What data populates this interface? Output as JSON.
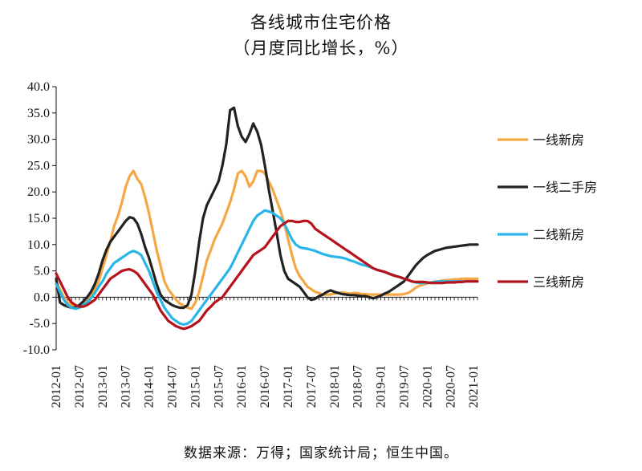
{
  "chart_data": {
    "type": "line",
    "title": "各线城市住宅价格",
    "subtitle": "（月度同比增长，%）",
    "source": "数据来源：万得；国家统计局；恒生中国。",
    "ylim": [
      -10,
      40
    ],
    "yticks": [
      "40.0",
      "35.0",
      "30.0",
      "25.0",
      "20.0",
      "15.0",
      "10.0",
      "5.0",
      "0.0",
      "-5.0",
      "-10.0"
    ],
    "ytick_values": [
      40,
      35,
      30,
      25,
      20,
      15,
      10,
      5,
      0,
      -5,
      -10
    ],
    "xticks": [
      "2012-01",
      "2012-07",
      "2013-01",
      "2013-07",
      "2014-01",
      "2014-07",
      "2015-01",
      "2015-07",
      "2016-01",
      "2016-07",
      "2017-01",
      "2017-07",
      "2018-01",
      "2018-07",
      "2019-01",
      "2019-07",
      "2020-01",
      "2020-07",
      "2021-01"
    ],
    "x_start": "2012-01",
    "x_end": "2021-02",
    "legend_position": "right",
    "series": [
      {
        "name": "一线新房",
        "color": "#F4A742",
        "values": [
          3.0,
          1.5,
          0.0,
          -1.0,
          -1.5,
          -1.8,
          -1.8,
          -1.2,
          -0.5,
          0.5,
          1.5,
          3.0,
          5.5,
          8.0,
          10.5,
          13.5,
          15.5,
          18.0,
          21.0,
          23.0,
          24.0,
          22.5,
          21.5,
          19.0,
          16.0,
          12.5,
          9.0,
          6.0,
          3.0,
          1.5,
          0.5,
          -0.5,
          -1.2,
          -1.6,
          -2.0,
          -2.2,
          -1.0,
          1.0,
          4.0,
          7.0,
          9.0,
          11.0,
          12.5,
          14.0,
          16.0,
          18.0,
          20.5,
          23.5,
          24.0,
          23.0,
          21.0,
          22.0,
          24.0,
          24.0,
          23.5,
          22.0,
          20.5,
          18.5,
          16.5,
          14.0,
          11.0,
          8.0,
          5.5,
          4.0,
          3.0,
          2.0,
          1.5,
          1.0,
          0.8,
          0.5,
          0.5,
          0.5,
          0.7,
          0.8,
          0.9,
          0.8,
          0.7,
          0.8,
          0.8,
          0.6,
          0.6,
          0.5,
          0.5,
          0.5,
          0.5,
          0.5,
          0.5,
          0.5,
          0.5,
          0.5,
          0.6,
          0.8,
          1.2,
          1.8,
          2.2,
          2.4,
          2.6,
          2.8,
          3.0,
          3.0,
          3.2,
          3.2,
          3.3,
          3.4,
          3.4,
          3.5,
          3.5,
          3.5,
          3.5,
          3.5
        ]
      },
      {
        "name": "一线二手房",
        "color": "#222222",
        "values": [
          3.5,
          -1.0,
          -1.5,
          -1.8,
          -2.0,
          -2.0,
          -1.5,
          -0.8,
          0.0,
          1.0,
          2.5,
          4.5,
          7.0,
          9.0,
          10.5,
          11.5,
          12.5,
          13.5,
          14.5,
          15.2,
          15.0,
          14.0,
          12.0,
          9.5,
          7.5,
          5.0,
          2.5,
          0.5,
          -0.5,
          -1.0,
          -1.5,
          -1.8,
          -2.0,
          -2.0,
          -1.5,
          0.5,
          5.0,
          10.5,
          15.0,
          17.5,
          19.0,
          20.5,
          22.0,
          25.0,
          29.0,
          35.5,
          36.0,
          32.5,
          30.5,
          29.5,
          31.0,
          33.0,
          31.5,
          29.0,
          25.0,
          20.5,
          16.5,
          12.5,
          8.0,
          5.0,
          3.5,
          3.0,
          2.5,
          2.0,
          1.0,
          0.0,
          -0.5,
          -0.3,
          0.2,
          0.5,
          1.0,
          1.3,
          1.0,
          0.8,
          0.6,
          0.5,
          0.4,
          0.4,
          0.3,
          0.2,
          0.2,
          0.0,
          -0.2,
          0.0,
          0.3,
          0.7,
          1.0,
          1.5,
          2.0,
          2.5,
          3.0,
          4.0,
          5.0,
          6.0,
          6.8,
          7.5,
          8.0,
          8.4,
          8.8,
          9.0,
          9.2,
          9.4,
          9.5,
          9.6,
          9.7,
          9.8,
          9.9,
          10.0,
          10.0,
          10.0
        ]
      },
      {
        "name": "二线新房",
        "color": "#29B5E8",
        "values": [
          2.5,
          1.0,
          -0.5,
          -1.5,
          -2.0,
          -2.2,
          -2.0,
          -1.5,
          -1.0,
          -0.2,
          0.8,
          2.0,
          3.0,
          4.5,
          5.5,
          6.5,
          7.0,
          7.5,
          8.0,
          8.5,
          8.8,
          8.5,
          8.0,
          6.5,
          5.0,
          3.0,
          1.0,
          -0.5,
          -2.0,
          -3.0,
          -4.0,
          -4.5,
          -5.0,
          -5.2,
          -5.0,
          -4.5,
          -3.5,
          -2.5,
          -1.5,
          -0.5,
          0.5,
          1.5,
          2.5,
          3.5,
          4.5,
          5.5,
          7.0,
          8.5,
          10.0,
          11.5,
          13.0,
          14.5,
          15.5,
          16.0,
          16.5,
          16.3,
          16.0,
          15.5,
          15.0,
          14.0,
          12.5,
          11.0,
          10.0,
          9.5,
          9.3,
          9.2,
          9.0,
          8.8,
          8.5,
          8.2,
          8.0,
          7.8,
          7.7,
          7.6,
          7.5,
          7.3,
          7.0,
          6.8,
          6.5,
          6.2,
          6.0,
          5.8,
          5.5,
          5.2,
          5.0,
          4.8,
          4.5,
          4.3,
          4.0,
          3.8,
          3.5,
          3.3,
          3.0,
          2.8,
          2.7,
          2.7,
          2.7,
          2.8,
          2.9,
          3.0,
          3.0,
          3.0,
          3.0,
          3.0,
          3.0,
          3.0,
          3.0,
          3.0,
          3.0,
          3.0
        ]
      },
      {
        "name": "三线新房",
        "color": "#B5121B",
        "values": [
          4.5,
          3.0,
          1.5,
          0.0,
          -1.0,
          -1.5,
          -1.8,
          -1.8,
          -1.5,
          -1.0,
          -0.5,
          0.5,
          1.5,
          2.5,
          3.5,
          4.0,
          4.5,
          5.0,
          5.2,
          5.3,
          5.0,
          4.5,
          3.5,
          2.5,
          1.5,
          0.5,
          -1.0,
          -2.5,
          -3.5,
          -4.5,
          -5.0,
          -5.5,
          -5.8,
          -6.0,
          -5.8,
          -5.5,
          -5.0,
          -4.5,
          -3.5,
          -2.5,
          -1.8,
          -1.0,
          -0.5,
          0.0,
          1.0,
          2.0,
          3.0,
          4.0,
          5.0,
          6.0,
          7.0,
          8.0,
          8.5,
          9.0,
          9.5,
          10.5,
          11.5,
          12.5,
          13.5,
          14.0,
          14.5,
          14.5,
          14.3,
          14.3,
          14.5,
          14.5,
          14.0,
          13.0,
          12.5,
          12.0,
          11.5,
          11.0,
          10.5,
          10.0,
          9.5,
          9.0,
          8.5,
          8.0,
          7.5,
          7.0,
          6.5,
          6.0,
          5.5,
          5.2,
          5.0,
          4.8,
          4.5,
          4.2,
          4.0,
          3.8,
          3.5,
          3.3,
          3.0,
          2.9,
          2.9,
          2.9,
          2.8,
          2.7,
          2.7,
          2.7,
          2.7,
          2.8,
          2.8,
          2.8,
          2.9,
          2.9,
          3.0,
          3.0,
          3.0,
          3.0
        ]
      }
    ]
  }
}
